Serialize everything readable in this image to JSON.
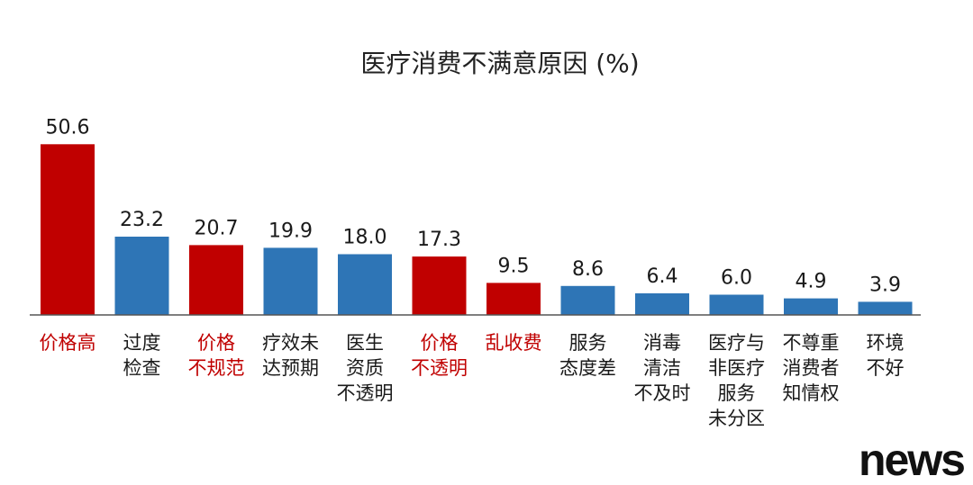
{
  "watermark": "news",
  "chart_data": {
    "type": "bar",
    "title": "医疗消费不满意原因 (%)",
    "xlabel": "",
    "ylabel": "",
    "ylim": [
      0,
      55
    ],
    "grid": false,
    "legend": "none",
    "categories": [
      [
        "价格高"
      ],
      [
        "过度",
        "检查"
      ],
      [
        "价格",
        "不规范"
      ],
      [
        "疗效未",
        "达预期"
      ],
      [
        "医生",
        "资质",
        "不透明"
      ],
      [
        "价格",
        "不透明"
      ],
      [
        "乱收费"
      ],
      [
        "服务",
        "态度差"
      ],
      [
        "消毒",
        "清洁",
        "不及时"
      ],
      [
        "医疗与",
        "非医疗",
        "服务",
        "未分区"
      ],
      [
        "不尊重",
        "消费者",
        "知情权"
      ],
      [
        "环境",
        "不好"
      ]
    ],
    "values": [
      50.6,
      23.2,
      20.7,
      19.9,
      18.0,
      17.3,
      9.5,
      8.6,
      6.4,
      6.0,
      4.9,
      3.9
    ],
    "value_labels": [
      "50.6",
      "23.2",
      "20.7",
      "19.9",
      "18.0",
      "17.3",
      "9.5",
      "8.6",
      "6.4",
      "6.0",
      "4.9",
      "3.9"
    ],
    "highlight": [
      true,
      false,
      true,
      false,
      false,
      true,
      true,
      false,
      false,
      false,
      false,
      false
    ],
    "colors": {
      "highlight": "#c00000",
      "normal": "#2e75b6",
      "highlight_text": "#c00000",
      "normal_text": "#1a1a1a",
      "axis": "#555555"
    }
  }
}
